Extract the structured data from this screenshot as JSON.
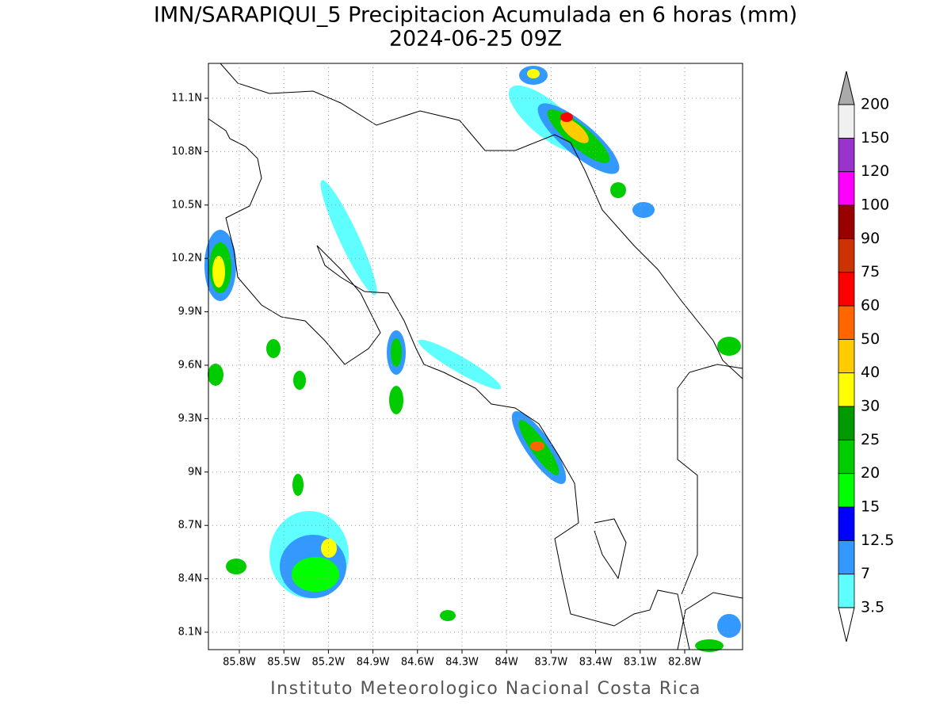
{
  "title": "IMN/SARAPIQUI_5 Precipitacion Acumulada en 6 horas (mm)",
  "subtitle": "2024-06-25 09Z",
  "x_ticks": [
    "85.8W",
    "85.5W",
    "85.2W",
    "84.9W",
    "84.6W",
    "84.3W",
    "84W",
    "83.7W",
    "83.4W",
    "83.1W",
    "82.8W"
  ],
  "y_ticks": [
    "11.1N",
    "10.8N",
    "10.5N",
    "10.2N",
    "9.9N",
    "9.6N",
    "9.3N",
    "9N",
    "8.7N",
    "8.4N",
    "8.1N"
  ],
  "colorbar": {
    "labels": [
      "3.5",
      "7",
      "12.5",
      "15",
      "20",
      "25",
      "30",
      "40",
      "50",
      "60",
      "75",
      "90",
      "100",
      "120",
      "150",
      "200"
    ],
    "colors": [
      "#60ffff",
      "#3399ff",
      "#0000ff",
      "#00ff00",
      "#00cc00",
      "#009900",
      "#ffff00",
      "#ffcc00",
      "#ff6600",
      "#ff0000",
      "#cc3300",
      "#990000",
      "#ff00ff",
      "#9933cc",
      "#f0f0f0"
    ],
    "under_color": "#ffffff",
    "over_color": "#aaaaaa"
  },
  "footer": "Instituto Meteorologico Nacional Costa Rica"
}
